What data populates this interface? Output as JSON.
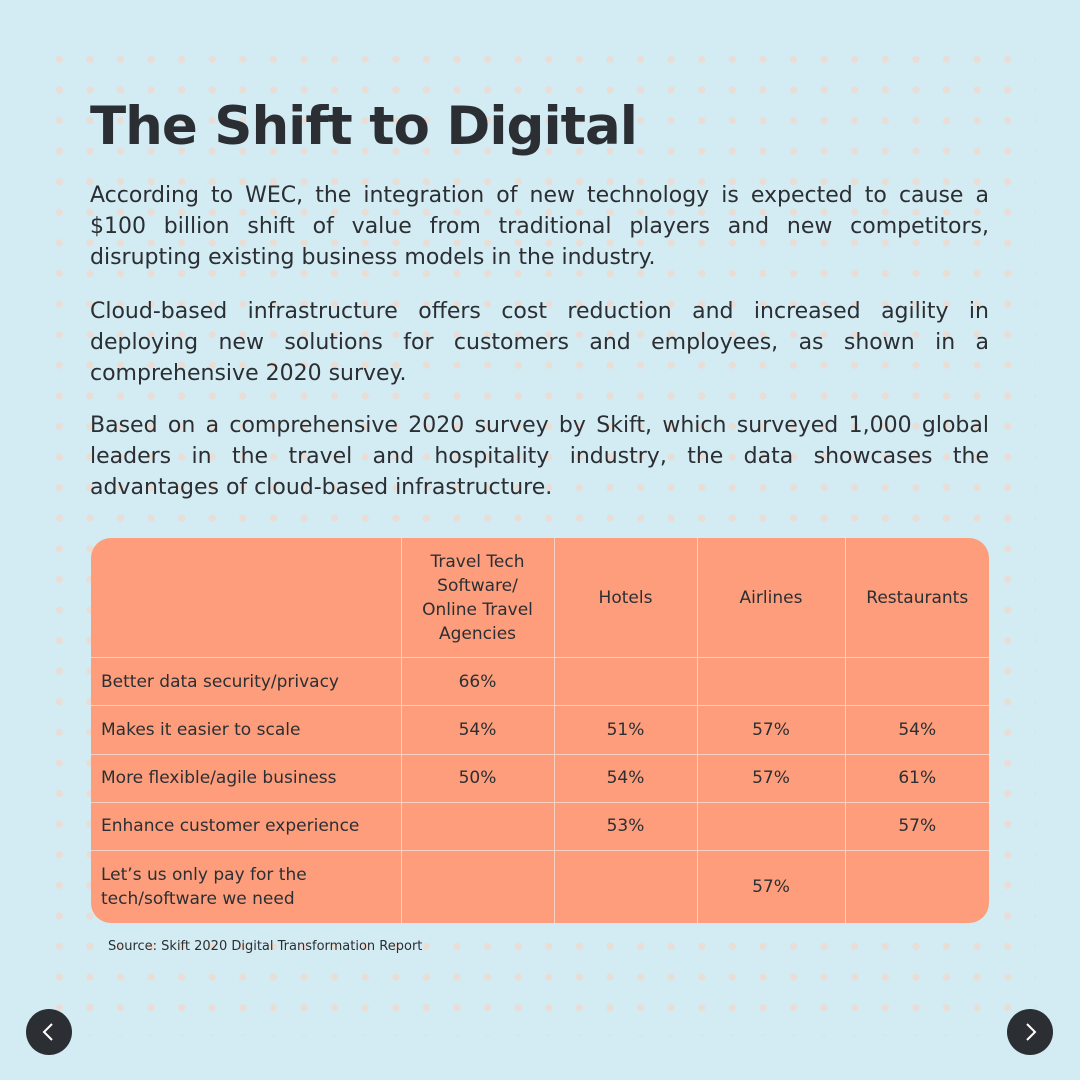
{
  "title": "The Shift to Digital",
  "paragraphs": [
    "According to WEC, the integration of new technology is expected to cause a $100 billion shift of value from traditional players and new competitors, disrupting existing business models in the industry.",
    "Cloud-based infrastructure offers cost reduction and increased agility in deploying new solutions for customers and employees, as shown in a comprehensive 2020 survey.",
    "Based on a comprehensive 2020 survey by Skift, which surveyed 1,000 global leaders in the travel and hospitality industry, the data showcases the advantages of cloud-based infrastructure."
  ],
  "table": {
    "columns": [
      "",
      "Travel Tech Software/ Online Travel Agencies",
      "Hotels",
      "Airlines",
      "Restaurants"
    ],
    "rows": [
      {
        "label": "Better data security/privacy",
        "values": [
          "66%",
          "",
          "",
          ""
        ]
      },
      {
        "label": "Makes it easier to scale",
        "values": [
          "54%",
          "51%",
          "57%",
          "54%"
        ]
      },
      {
        "label": "More flexible/agile business",
        "values": [
          "50%",
          "54%",
          "57%",
          "61%"
        ]
      },
      {
        "label": "Enhance customer experience",
        "values": [
          "",
          "53%",
          "",
          "57%"
        ]
      },
      {
        "label": "Let’s us only pay for the tech/software we need",
        "values": [
          "",
          "",
          "57%",
          ""
        ]
      }
    ]
  },
  "source": "Source: Skift 2020 Digital Transformation Report",
  "navigation": {
    "prev_icon": "chevron-left-icon",
    "next_icon": "chevron-right-icon"
  },
  "colors": {
    "background": "#d3ebf2",
    "table_fill": "#fd9d7b",
    "text": "#2b2f33",
    "dots": "#e9ddd6"
  }
}
